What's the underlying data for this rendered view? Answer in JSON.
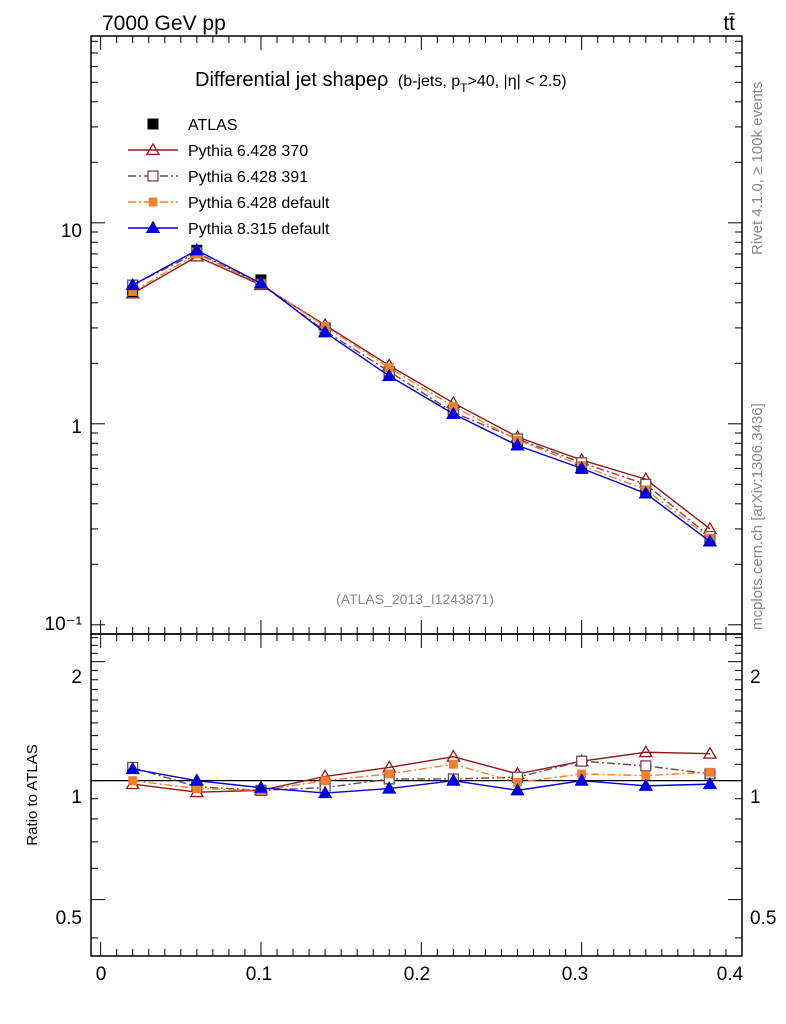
{
  "header": {
    "energy_label": "7000 GeV pp",
    "process_label": "tt̄"
  },
  "side_labels": {
    "rivet": "Rivet 4.1.0, ≥ 100k events",
    "mcplots": "mcplots.cern.ch [arXiv:1306.3436]"
  },
  "chart_data": [
    {
      "type": "line",
      "panel": "main",
      "title_main": "Differential jet shapeρ",
      "title_sub": "(b-jets, p",
      "title_sub_T": "T",
      "title_sub_rest": ">40, |η| < 2.5)",
      "analysis_id": "(ATLAS_2013_I1243871)",
      "xlabel": "",
      "ylabel": "",
      "xlim": [
        -0.006,
        0.4
      ],
      "ylim": [
        0.09,
        85
      ],
      "yscale": "log",
      "x": [
        0.02,
        0.06,
        0.1,
        0.14,
        0.18,
        0.22,
        0.26,
        0.3,
        0.34,
        0.38
      ],
      "y_tick_labels": [
        "10⁻¹",
        "1",
        "10"
      ],
      "series": [
        {
          "name": "ATLAS",
          "color": "#000000",
          "marker": "square",
          "line": "none",
          "values": [
            4.55,
            7.3,
            5.2,
            3.0,
            1.8,
            1.13,
            0.82,
            0.6,
            0.46,
            0.265
          ]
        },
        {
          "name": "Pythia 6.428 370",
          "color": "#8b1a1a",
          "marker": "open-triangle",
          "line": "solid",
          "values": [
            4.45,
            6.8,
            4.9,
            3.1,
            1.95,
            1.27,
            0.86,
            0.66,
            0.53,
            0.3
          ]
        },
        {
          "name": "Pythia 6.428 391",
          "color": "#6e4a4a",
          "marker": "open-square",
          "line": "dashdot",
          "values": [
            4.9,
            7.1,
            4.95,
            2.9,
            1.82,
            1.14,
            0.84,
            0.64,
            0.5,
            0.275
          ]
        },
        {
          "name": "Pythia 6.428 default",
          "color": "#f08030",
          "marker": "filled-square",
          "line": "dashdot",
          "values": [
            4.55,
            7.0,
            4.95,
            3.05,
            1.9,
            1.22,
            0.83,
            0.62,
            0.47,
            0.27
          ]
        },
        {
          "name": "Pythia 8.315 default",
          "color": "#0000dd",
          "marker": "filled-triangle",
          "line": "solid",
          "values": [
            4.9,
            7.3,
            5.0,
            2.85,
            1.73,
            1.12,
            0.78,
            0.6,
            0.45,
            0.26
          ]
        }
      ]
    },
    {
      "type": "line",
      "panel": "ratio",
      "ylabel": "Ratio to ATLAS",
      "xlim": [
        -0.006,
        0.4
      ],
      "ylim": [
        0.36,
        2.35
      ],
      "yscale": "log",
      "y_ticks": [
        0.5,
        1,
        2
      ],
      "y_tick_labels": [
        "0.5",
        "1",
        "2"
      ],
      "x_ticks": [
        0,
        0.1,
        0.2,
        0.3,
        0.4
      ],
      "x_tick_labels": [
        "0",
        "0.1",
        "0.2",
        "0.3",
        "0.4"
      ],
      "x": [
        0.02,
        0.06,
        0.1,
        0.14,
        0.18,
        0.22,
        0.26,
        0.3,
        0.34,
        0.38
      ],
      "reference": 1,
      "series": [
        {
          "name": "Pythia 6.428 370",
          "color": "#8b1a1a",
          "marker": "open-triangle",
          "line": "solid",
          "values": [
            0.98,
            0.935,
            0.945,
            1.025,
            1.08,
            1.15,
            1.04,
            1.12,
            1.18,
            1.17
          ]
        },
        {
          "name": "Pythia 6.428 391",
          "color": "#6e4a4a",
          "marker": "open-square",
          "line": "dashdot",
          "values": [
            1.08,
            0.965,
            0.945,
            0.96,
            1.01,
            1.01,
            1.02,
            1.12,
            1.09,
            1.04
          ]
        },
        {
          "name": "Pythia 6.428 default",
          "color": "#f08030",
          "marker": "filled-square",
          "line": "dashdot",
          "values": [
            1.0,
            0.955,
            0.945,
            1.0,
            1.04,
            1.1,
            0.99,
            1.04,
            1.03,
            1.05
          ]
        },
        {
          "name": "Pythia 8.315 default",
          "color": "#0000dd",
          "marker": "filled-triangle",
          "line": "solid",
          "values": [
            1.07,
            1.0,
            0.96,
            0.93,
            0.955,
            1.0,
            0.945,
            1.0,
            0.97,
            0.98
          ]
        }
      ]
    }
  ]
}
